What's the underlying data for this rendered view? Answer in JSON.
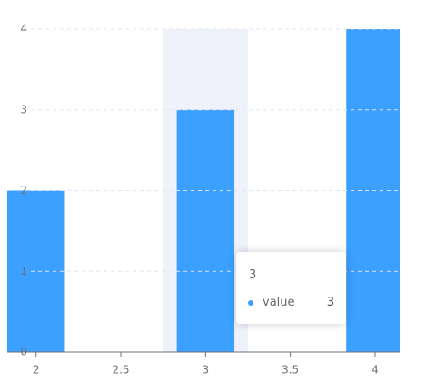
{
  "chart_data": {
    "type": "bar",
    "x": [
      2,
      3,
      4
    ],
    "series": [
      {
        "name": "value",
        "color": "#3ba0ff",
        "values": [
          2,
          3,
          4
        ]
      }
    ],
    "xlim": [
      1.83,
      4.145
    ],
    "xticks": [
      2,
      2.5,
      3,
      3.5,
      4
    ],
    "ylim": [
      0,
      4
    ],
    "yticks": [
      0,
      1,
      2,
      3,
      4
    ],
    "grid": true
  }
}
